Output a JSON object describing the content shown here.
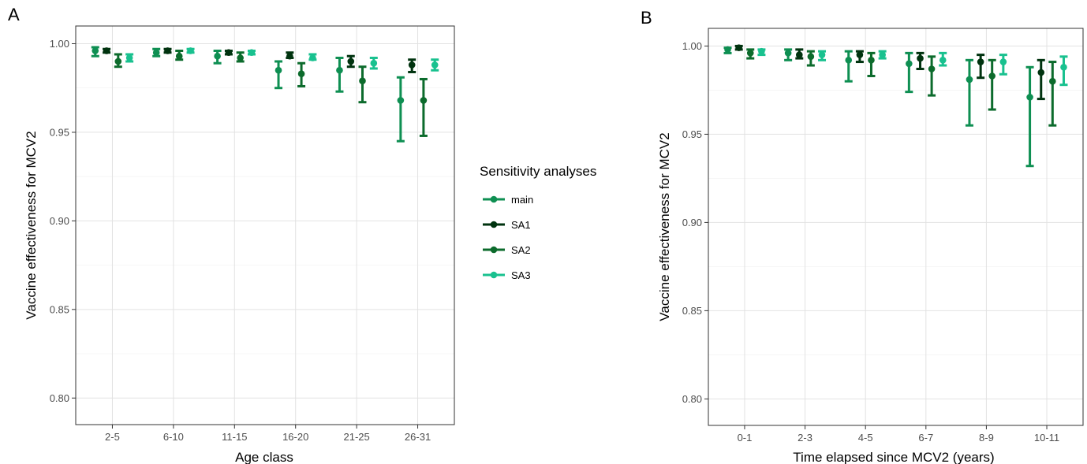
{
  "legend": {
    "title": "Sensitivity analyses",
    "items": [
      {
        "name": "main",
        "color": "#0e8f52"
      },
      {
        "name": "SA1",
        "color": "#00330f"
      },
      {
        "name": "SA2",
        "color": "#0c6b2c"
      },
      {
        "name": "SA3",
        "color": "#19c18f"
      }
    ]
  },
  "chart_data": [
    {
      "type": "scatter",
      "panel_label": "A",
      "title": "",
      "xlabel": "Age class",
      "ylabel": "Vaccine effectiveness for MCV2",
      "categories": [
        "2-5",
        "6-10",
        "11-15",
        "16-20",
        "21-25",
        "26-31"
      ],
      "ylim": [
        0.785,
        1.01
      ],
      "yticks": [
        0.8,
        0.85,
        0.9,
        0.95,
        1.0
      ],
      "ytick_labels": [
        "0.80",
        "0.85",
        "0.90",
        "0.95",
        "1.00"
      ],
      "grid": true,
      "series": [
        {
          "name": "main",
          "values": [
            0.996,
            0.995,
            0.993,
            0.985,
            0.985,
            0.968
          ],
          "lower": [
            0.993,
            0.993,
            0.989,
            0.975,
            0.973,
            0.945
          ],
          "upper": [
            0.998,
            0.997,
            0.996,
            0.99,
            0.992,
            0.981
          ]
        },
        {
          "name": "SA1",
          "values": [
            0.996,
            0.996,
            0.995,
            0.993,
            0.99,
            0.988
          ],
          "lower": [
            0.995,
            0.995,
            0.994,
            0.992,
            0.987,
            0.984
          ],
          "upper": [
            0.997,
            0.997,
            0.996,
            0.995,
            0.993,
            0.991
          ]
        },
        {
          "name": "SA2",
          "values": [
            0.99,
            0.993,
            0.992,
            0.983,
            0.979,
            0.968
          ],
          "lower": [
            0.987,
            0.991,
            0.99,
            0.976,
            0.967,
            0.948
          ],
          "upper": [
            0.994,
            0.996,
            0.995,
            0.989,
            0.987,
            0.98
          ]
        },
        {
          "name": "SA3",
          "values": [
            0.992,
            0.996,
            0.995,
            0.992,
            0.989,
            0.988
          ],
          "lower": [
            0.99,
            0.995,
            0.994,
            0.991,
            0.986,
            0.985
          ],
          "upper": [
            0.994,
            0.997,
            0.996,
            0.994,
            0.992,
            0.991
          ]
        }
      ]
    },
    {
      "type": "scatter",
      "panel_label": "B",
      "title": "",
      "xlabel": "Time elapsed since MCV2 (years)",
      "ylabel": "Vaccine effectiveness for MCV2",
      "categories": [
        "0-1",
        "2-3",
        "4-5",
        "6-7",
        "8-9",
        "10-11"
      ],
      "ylim": [
        0.785,
        1.01
      ],
      "yticks": [
        0.8,
        0.85,
        0.9,
        0.95,
        1.0
      ],
      "ytick_labels": [
        "0.80",
        "0.85",
        "0.90",
        "0.95",
        "1.00"
      ],
      "grid": true,
      "series": [
        {
          "name": "main",
          "values": [
            0.998,
            0.996,
            0.992,
            0.99,
            0.981,
            0.971
          ],
          "lower": [
            0.996,
            0.992,
            0.98,
            0.974,
            0.955,
            0.932
          ],
          "upper": [
            0.999,
            0.998,
            0.997,
            0.996,
            0.992,
            0.988
          ]
        },
        {
          "name": "SA1",
          "values": [
            0.999,
            0.995,
            0.995,
            0.993,
            0.991,
            0.985
          ],
          "lower": [
            0.998,
            0.993,
            0.991,
            0.987,
            0.982,
            0.97
          ],
          "upper": [
            1.0,
            0.998,
            0.997,
            0.996,
            0.995,
            0.992
          ]
        },
        {
          "name": "SA2",
          "values": [
            0.996,
            0.994,
            0.992,
            0.987,
            0.983,
            0.98
          ],
          "lower": [
            0.993,
            0.989,
            0.983,
            0.972,
            0.964,
            0.955
          ],
          "upper": [
            0.998,
            0.997,
            0.996,
            0.994,
            0.992,
            0.991
          ]
        },
        {
          "name": "SA3",
          "values": [
            0.997,
            0.995,
            0.995,
            0.992,
            0.991,
            0.988
          ],
          "lower": [
            0.995,
            0.992,
            0.993,
            0.989,
            0.984,
            0.978
          ],
          "upper": [
            0.998,
            0.997,
            0.997,
            0.996,
            0.995,
            0.994
          ]
        }
      ]
    }
  ]
}
